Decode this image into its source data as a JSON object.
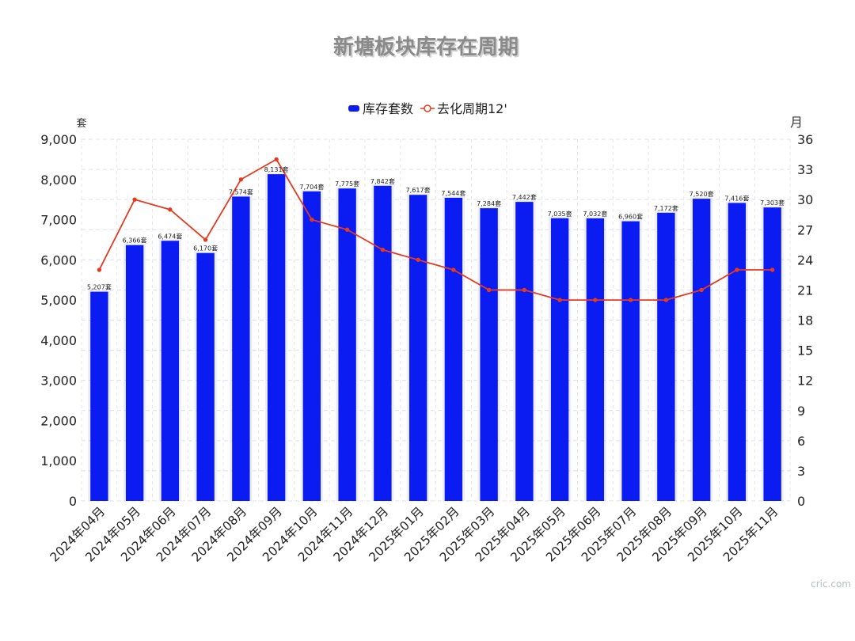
{
  "title": "新塘板块库存在周期",
  "legend": {
    "items": [
      {
        "label": "库存套数",
        "color": "#0a1cf2"
      },
      {
        "label": "去化周期12'",
        "color": "#e63a1e"
      }
    ]
  },
  "axes": {
    "left_unit": "套",
    "right_unit": "月"
  },
  "watermark": "cric.com",
  "chart_data": {
    "type": "bar",
    "title": "新塘板块库存在周期",
    "categories": [
      "2024年04月",
      "2024年05月",
      "2024年06月",
      "2024年07月",
      "2024年08月",
      "2024年09月",
      "2024年10月",
      "2024年11月",
      "2024年12月",
      "2025年01月",
      "2025年02月",
      "2025年03月",
      "2025年04月",
      "2025年05月",
      "2025年06月",
      "2025年07月",
      "2025年08月",
      "2025年09月",
      "2025年10月",
      "2025年11月"
    ],
    "series": [
      {
        "name": "库存套数",
        "type": "bar",
        "axis": "left",
        "color": "#0a1cf2",
        "values": [
          5207,
          6366,
          6474,
          6170,
          7574,
          8131,
          7704,
          7775,
          7842,
          7617,
          7544,
          7284,
          7442,
          7035,
          7032,
          6960,
          7172,
          7520,
          7416,
          7303
        ],
        "labels": [
          "5,207套",
          "6,366套",
          "6,474套",
          "6,170套",
          "7,574套",
          "8,131套",
          "7,704套",
          "7,775套",
          "7,842套",
          "7,617套",
          "7,544套",
          "7,284套",
          "7,442套",
          "7,035套",
          "7,032套",
          "6,960套",
          "7,172套",
          "7,520套",
          "7,416套",
          "7,303套"
        ]
      },
      {
        "name": "去化周期12'",
        "type": "line",
        "axis": "right",
        "color": "#e63a1e",
        "values": [
          23,
          30,
          29,
          26,
          32,
          34,
          28,
          27,
          25,
          24,
          23,
          21,
          21,
          20,
          20,
          20,
          20,
          21,
          23,
          23
        ]
      }
    ],
    "ylim_left": [
      0,
      9000
    ],
    "ylim_right": [
      0,
      36
    ],
    "yticks_left": [
      "0",
      "1,000",
      "2,000",
      "3,000",
      "4,000",
      "5,000",
      "6,000",
      "7,000",
      "8,000",
      "9,000"
    ],
    "yticks_right": [
      "0",
      "3",
      "6",
      "9",
      "12",
      "15",
      "18",
      "21",
      "24",
      "27",
      "30",
      "33",
      "36"
    ],
    "grid": true,
    "legend_position": "top-center"
  }
}
